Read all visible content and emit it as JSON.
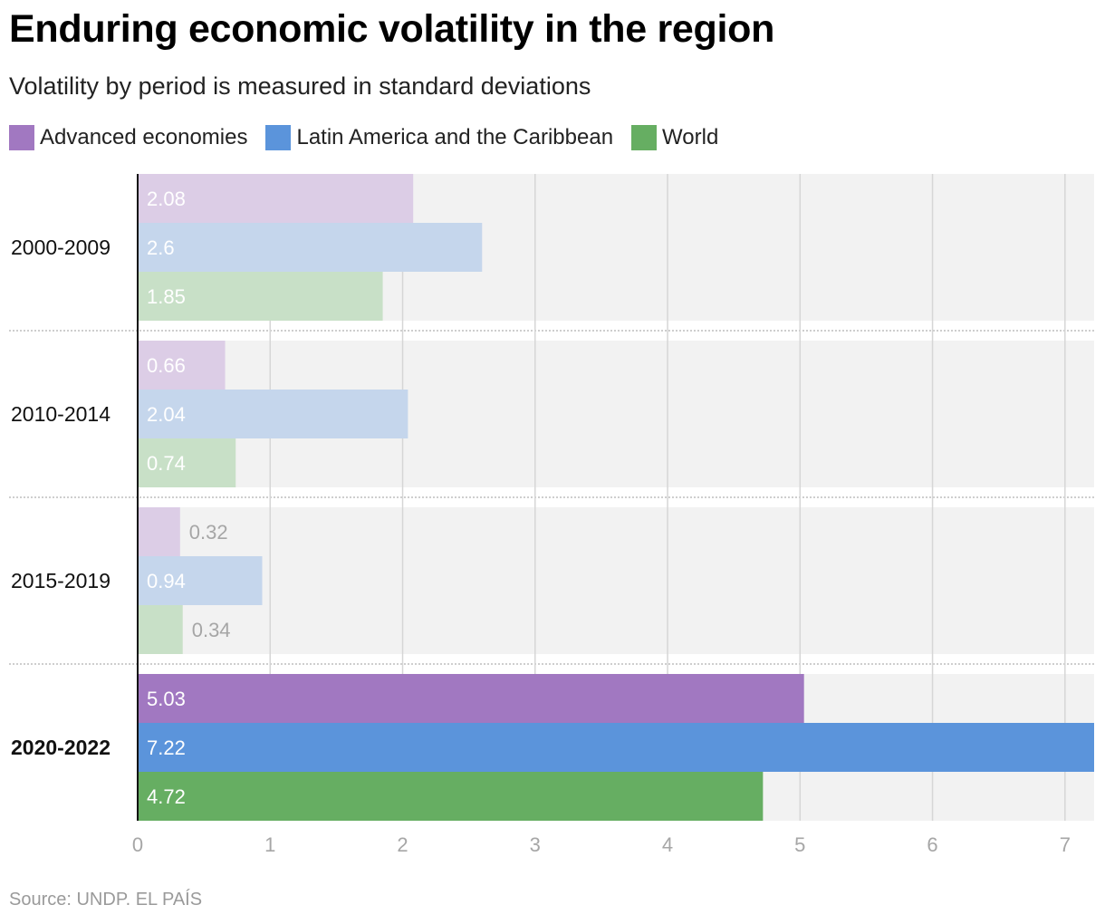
{
  "title": "Enduring economic volatility in the region",
  "subtitle": "Volatility by period is measured in standard deviations",
  "legend": [
    {
      "label": "Advanced economies",
      "color": "#a178c1"
    },
    {
      "label": "Latin America and the Caribbean",
      "color": "#5b94db"
    },
    {
      "label": "World",
      "color": "#66ae62"
    }
  ],
  "source": "Source: UNDP. EL PAÍS",
  "chart_data": {
    "type": "bar",
    "orientation": "horizontal",
    "categories": [
      "2000-2009",
      "2010-2014",
      "2015-2019",
      "2020-2022"
    ],
    "highlighted_category": "2020-2022",
    "series": [
      {
        "name": "Advanced economies",
        "color": "#a178c1",
        "values": [
          2.08,
          0.66,
          0.32,
          5.03
        ]
      },
      {
        "name": "Latin America and the Caribbean",
        "color": "#5b94db",
        "values": [
          2.6,
          2.04,
          0.94,
          7.22
        ]
      },
      {
        "name": "World",
        "color": "#66ae62",
        "values": [
          1.85,
          0.74,
          0.34,
          4.72
        ]
      }
    ],
    "xlim": [
      0,
      7.22
    ],
    "xticks": [
      0,
      1,
      2,
      3,
      4,
      5,
      6,
      7
    ],
    "grid": true,
    "legend_position": "top-left"
  }
}
